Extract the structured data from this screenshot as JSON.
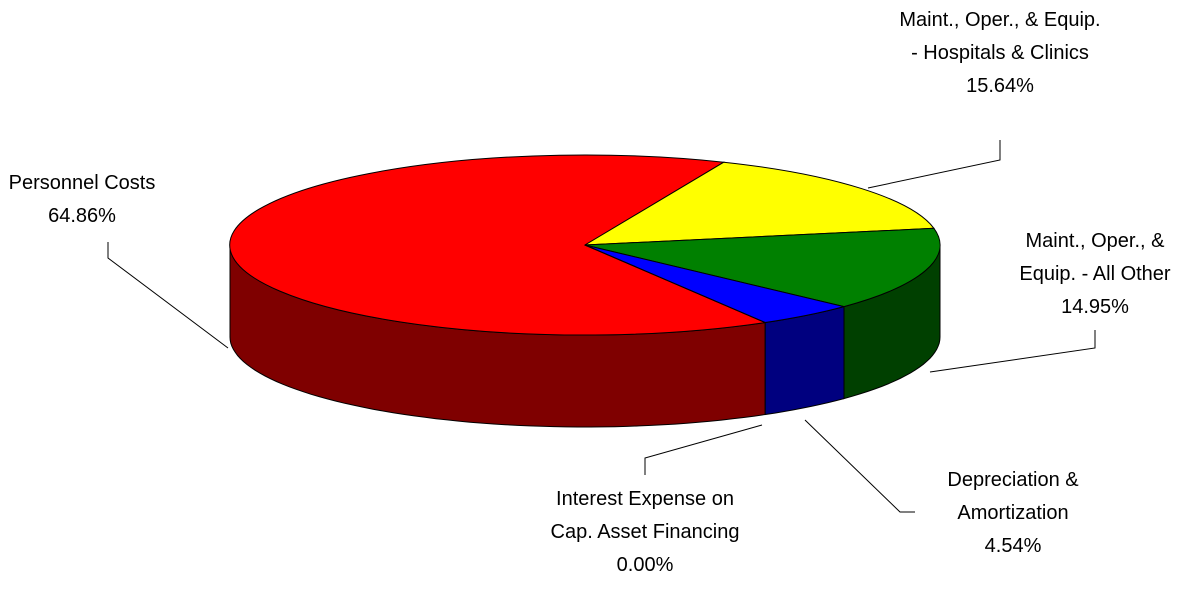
{
  "chart_data": {
    "type": "pie",
    "depth3d": true,
    "categories": [
      "Personnel Costs",
      "Maint., Oper., & Equip. - Hospitals & Clinics",
      "Maint., Oper., & Equip. - All Other",
      "Depreciation & Amortization",
      "Interest Expense on Cap. Asset Financing"
    ],
    "values": [
      64.86,
      15.64,
      14.95,
      4.54,
      0.0
    ],
    "value_labels": [
      "64.86%",
      "15.64%",
      "14.95%",
      "4.54%",
      "0.00%"
    ],
    "colors": [
      "#ff0000",
      "#ffff00",
      "#008000",
      "#0000ff",
      "#00ffff"
    ]
  }
}
